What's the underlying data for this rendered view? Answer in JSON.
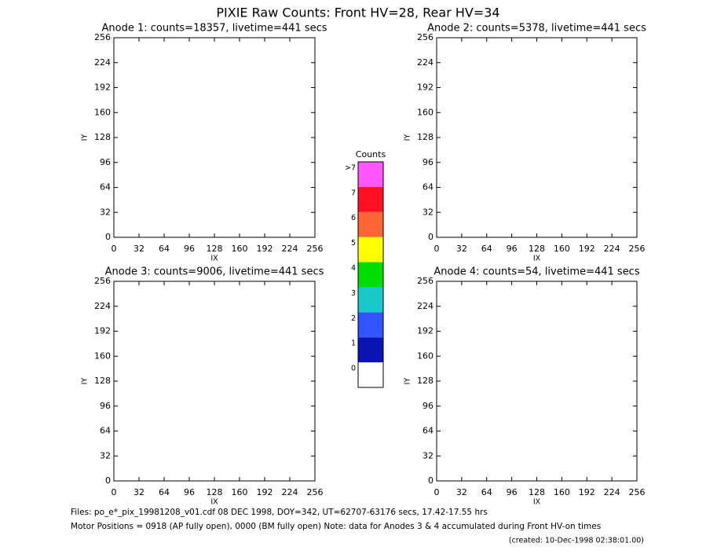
{
  "title": "PIXIE Raw Counts:  Front HV=28, Rear HV=34",
  "panels": [
    {
      "type": "heatmap",
      "title": "Anode 1: counts=18357, livetime=441 secs",
      "xlabel": "IX",
      "ylabel": "IY",
      "xlim": [
        0,
        256
      ],
      "ylim": [
        0,
        256
      ],
      "xticks": [
        0,
        32,
        64,
        96,
        128,
        160,
        192,
        224,
        256
      ],
      "yticks": [
        0,
        32,
        64,
        96,
        128,
        160,
        192,
        224,
        256
      ]
    },
    {
      "type": "heatmap",
      "title": "Anode 2: counts=5378, livetime=441 secs",
      "xlabel": "IX",
      "ylabel": "IY",
      "xlim": [
        0,
        256
      ],
      "ylim": [
        0,
        256
      ],
      "xticks": [
        0,
        32,
        64,
        96,
        128,
        160,
        192,
        224,
        256
      ],
      "yticks": [
        0,
        32,
        64,
        96,
        128,
        160,
        192,
        224,
        256
      ]
    },
    {
      "type": "heatmap",
      "title": "Anode 3: counts=9006, livetime=441 secs",
      "xlabel": "IX",
      "ylabel": "IY",
      "xlim": [
        0,
        256
      ],
      "ylim": [
        0,
        256
      ],
      "xticks": [
        0,
        32,
        64,
        96,
        128,
        160,
        192,
        224,
        256
      ],
      "yticks": [
        0,
        32,
        64,
        96,
        128,
        160,
        192,
        224,
        256
      ]
    },
    {
      "type": "heatmap",
      "title": "Anode 4: counts=54, livetime=441 secs",
      "xlabel": "IX",
      "ylabel": "IY",
      "xlim": [
        0,
        256
      ],
      "ylim": [
        0,
        256
      ],
      "xticks": [
        0,
        32,
        64,
        96,
        128,
        160,
        192,
        224,
        256
      ],
      "yticks": [
        0,
        32,
        64,
        96,
        128,
        160,
        192,
        224,
        256
      ]
    }
  ],
  "colorbar": {
    "title": "Counts",
    "levels": [
      {
        "label": "0",
        "color": "#ffffff"
      },
      {
        "label": "1",
        "color": "#0a14b4"
      },
      {
        "label": "2",
        "color": "#3355ff"
      },
      {
        "label": "3",
        "color": "#19c8c8"
      },
      {
        "label": "4",
        "color": "#00dd00"
      },
      {
        "label": "5",
        "color": "#ffff00"
      },
      {
        "label": "6",
        "color": "#ff6633"
      },
      {
        "label": "7",
        "color": "#ff1122"
      },
      {
        "label": ">7",
        "color": "#ff55ff"
      }
    ]
  },
  "footer": {
    "files": "Files: po_e*_pix_19981208_v01.cdf    08 DEC 1998, DOY=342, UT=62707-63176 secs, 17.42-17.55 hrs",
    "motor": "Motor Positions = 0918 (AP fully open), 0000 (BM fully open)    Note: data for Anodes 3 & 4 accumulated during Front HV-on times",
    "created": "(created: 10-Dec-1998 02:38:01.00)"
  }
}
